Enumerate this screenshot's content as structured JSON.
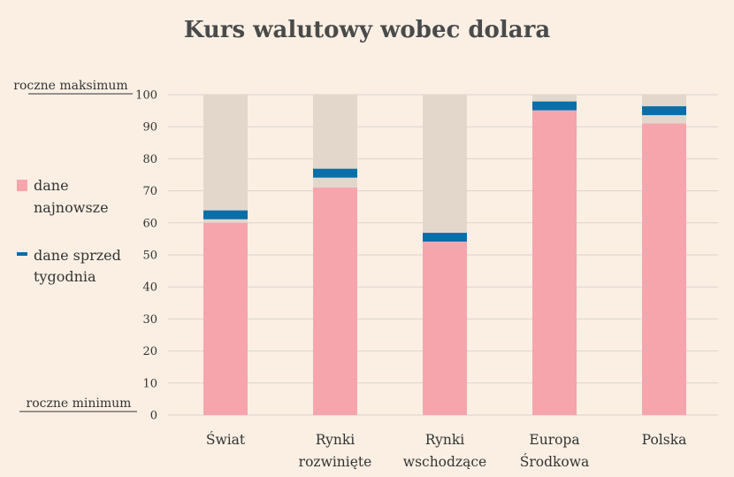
{
  "chart_data": {
    "type": "bar",
    "title": "Kurs walutowy wobec dolara",
    "categories": [
      [
        "Świat"
      ],
      [
        "Rynki",
        "rozwinięte"
      ],
      [
        "Rynki",
        "wschodzące"
      ],
      [
        "Europa",
        "Środkowa"
      ],
      [
        "Polska"
      ]
    ],
    "series": [
      {
        "name": "dane najnowsze",
        "values": [
          60,
          71,
          54,
          95,
          91
        ]
      },
      {
        "name": "dane sprzed tygodnia",
        "values": [
          62.5,
          75.5,
          55.5,
          96.5,
          95
        ]
      }
    ],
    "range_max": 100,
    "ylim": [
      0,
      100
    ],
    "yticks": [
      0,
      10,
      20,
      30,
      40,
      50,
      60,
      70,
      80,
      90,
      100
    ],
    "grid": true,
    "legend_position": "left",
    "legend": [
      {
        "lines": [
          "dane",
          "najnowsze"
        ]
      },
      {
        "lines": [
          "dane sprzed",
          "tygodnia"
        ]
      }
    ],
    "annotations": {
      "top": "roczne maksimum",
      "bottom": "roczne minimum"
    },
    "colors": {
      "latest": "#f6a5ad",
      "week_ago": "#0a6ea8",
      "range": "#e3d7cc",
      "grid": "#d9d2cb",
      "background": "#fbefe4"
    }
  }
}
